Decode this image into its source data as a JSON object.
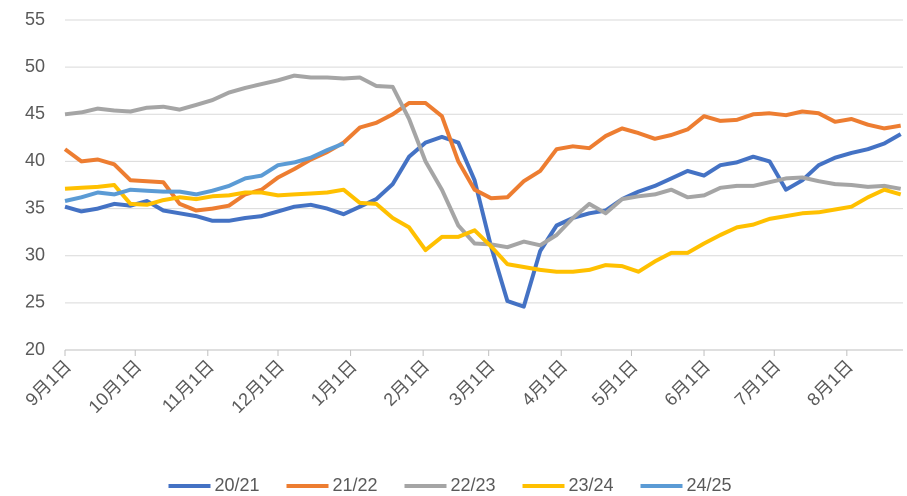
{
  "chart_data": {
    "type": "line",
    "x": [
      0,
      7,
      14,
      21,
      28,
      35,
      42,
      49,
      56,
      63,
      70,
      77,
      84,
      91,
      98,
      105,
      112,
      119,
      126,
      133,
      140,
      147,
      154,
      161,
      168,
      175,
      182,
      189,
      196,
      203,
      210,
      217,
      224,
      231,
      238,
      245,
      252,
      259,
      266,
      273,
      280,
      287,
      294,
      301,
      308,
      315,
      322,
      329,
      336,
      343,
      350,
      357
    ],
    "xlim": [
      0,
      358
    ],
    "xticks": [
      {
        "value": 0,
        "label": "9月1日"
      },
      {
        "value": 30,
        "label": "10月1日"
      },
      {
        "value": 61,
        "label": "11月1日"
      },
      {
        "value": 91,
        "label": "12月1日"
      },
      {
        "value": 122,
        "label": "1月1日"
      },
      {
        "value": 153,
        "label": "2月1日"
      },
      {
        "value": 181,
        "label": "3月1日"
      },
      {
        "value": 212,
        "label": "4月1日"
      },
      {
        "value": 242,
        "label": "5月1日"
      },
      {
        "value": 273,
        "label": "6月1日"
      },
      {
        "value": 303,
        "label": "7月1日"
      },
      {
        "value": 334,
        "label": "8月1日"
      }
    ],
    "ylim": [
      20,
      55
    ],
    "yticks": [
      20,
      25,
      30,
      35,
      40,
      45,
      50,
      55
    ],
    "grid": true,
    "legend": "bottom",
    "series": [
      {
        "name": "20/21",
        "color": "#4472c4",
        "values": [
          35.2,
          34.7,
          35,
          35.5,
          35.3,
          35.8,
          34.8,
          34.5,
          34.2,
          33.7,
          33.7,
          34,
          34.2,
          34.7,
          35.2,
          35.4,
          35,
          34.4,
          35.2,
          36,
          37.6,
          40.5,
          42,
          42.6,
          42,
          38,
          31,
          25.2,
          24.6,
          30.5,
          33.2,
          34,
          34.5,
          34.8,
          36,
          36.8,
          37.4,
          38.2,
          39,
          38.5,
          39.6,
          39.9,
          40.5,
          40,
          37,
          38,
          39.6,
          40.4,
          40.9,
          41.3,
          41.9,
          42.9
        ]
      },
      {
        "name": "21/22",
        "color": "#ed7d31",
        "values": [
          41.3,
          40,
          40.2,
          39.7,
          38,
          37.9,
          37.8,
          35.5,
          34.8,
          35,
          35.3,
          36.5,
          37,
          38.3,
          39.2,
          40.2,
          41,
          42,
          43.6,
          44.1,
          45,
          46.2,
          46.2,
          44.8,
          40,
          37,
          36.1,
          36.2,
          37.9,
          39,
          41.3,
          41.6,
          41.4,
          42.7,
          43.5,
          43,
          42.4,
          42.8,
          43.4,
          44.8,
          44.3,
          44.4,
          45,
          45.1,
          44.9,
          45.3,
          45.1,
          44.2,
          44.5,
          43.9,
          43.5,
          43.8
        ]
      },
      {
        "name": "22/23",
        "color": "#a5a5a5",
        "values": [
          45,
          45.2,
          45.6,
          45.4,
          45.3,
          45.7,
          45.8,
          45.5,
          46,
          46.5,
          47.3,
          47.8,
          48.2,
          48.6,
          49.1,
          48.9,
          48.9,
          48.8,
          48.9,
          48,
          47.9,
          44.5,
          40,
          37,
          33.2,
          31.3,
          31.2,
          30.9,
          31.5,
          31.1,
          32.2,
          34,
          35.5,
          34.5,
          36,
          36.3,
          36.5,
          37,
          36.2,
          36.4,
          37.2,
          37.4,
          37.4,
          37.8,
          38.2,
          38.3,
          37.9,
          37.6,
          37.5,
          37.3,
          37.4,
          37.1
        ]
      },
      {
        "name": "23/24",
        "color": "#ffc000",
        "values": [
          37.1,
          37.2,
          37.3,
          37.5,
          35.5,
          35.4,
          35.9,
          36.2,
          36,
          36.3,
          36.4,
          36.7,
          36.7,
          36.4,
          36.5,
          36.6,
          36.7,
          37,
          35.6,
          35.5,
          34,
          33,
          30.6,
          32,
          32,
          32.7,
          31,
          29.1,
          28.8,
          28.5,
          28.3,
          28.3,
          28.5,
          29,
          28.9,
          28.3,
          29.4,
          30.3,
          30.3,
          31.3,
          32.2,
          33,
          33.3,
          33.9,
          34.2,
          34.5,
          34.6,
          34.9,
          35.2,
          36.2,
          37,
          36.5
        ]
      },
      {
        "name": "24/25",
        "color": "#5b9bd5",
        "values": [
          35.8,
          36.2,
          36.7,
          36.5,
          37,
          36.9,
          36.8,
          36.8,
          36.5,
          36.9,
          37.4,
          38.2,
          38.5,
          39.6,
          39.9,
          40.4,
          41.2,
          41.9,
          null,
          null,
          null,
          null,
          null,
          null,
          null,
          null,
          null,
          null,
          null,
          null,
          null,
          null,
          null,
          null,
          null,
          null,
          null,
          null,
          null,
          null,
          null,
          null,
          null,
          null,
          null,
          null,
          null,
          null,
          null,
          null,
          null,
          null
        ]
      }
    ]
  }
}
